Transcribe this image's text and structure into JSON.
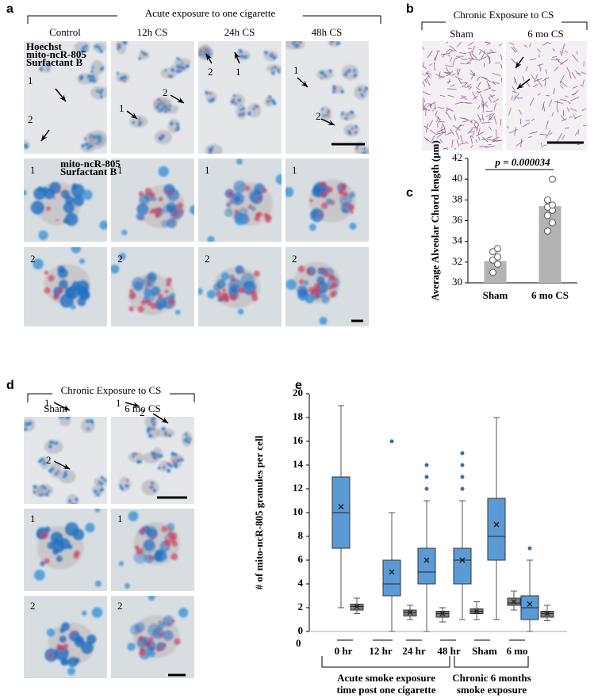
{
  "panel_a": {
    "label": "a",
    "title": "Acute exposure to one cigarette",
    "columns": [
      "Control",
      "12h CS",
      "24h CS",
      "48h CS"
    ],
    "stain_legend": [
      "Hoechst",
      "mito-ncR-805",
      "Surfactant B"
    ],
    "zoom_legend": [
      "mito-ncR-805",
      "Surfactant B"
    ],
    "cell_labels": [
      "1",
      "2"
    ]
  },
  "panel_b": {
    "label": "b",
    "title": "Chronic Exposure to CS",
    "columns": [
      "Sham",
      "6 mo CS"
    ]
  },
  "panel_d": {
    "label": "d",
    "title": "Chronic Exposure to CS",
    "columns": [
      "Sham",
      "6 mo CS"
    ],
    "cell_labels": [
      "1",
      "2"
    ]
  },
  "chart_data": [
    {
      "type": "bar",
      "label": "c",
      "ylabel": "Average Alveolar Chord length (μm)",
      "annotation": "p = 0.000034",
      "categories": [
        "Sham",
        "6 mo CS"
      ],
      "values": [
        32.1,
        37.4
      ],
      "points": [
        [
          31.0,
          31.8,
          32.2,
          32.5,
          33.0,
          33.3
        ],
        [
          35.0,
          35.8,
          36.5,
          37.0,
          37.3,
          37.5,
          38.0,
          40.0
        ]
      ],
      "color": "#b3b3b3",
      "ylim": [
        30,
        42
      ],
      "yticks": [
        30,
        32,
        34,
        36,
        38,
        40,
        42
      ]
    },
    {
      "type": "box",
      "label": "e",
      "ylabel": "# of mito-ncR-805 granules per cell",
      "x_start_label": "0",
      "categories": [
        "0 hr",
        "12 hr",
        "24 hr",
        "48 hr",
        "Sham",
        "6 mo"
      ],
      "group_labels": [
        [
          "Acute smoke exposure",
          "time post one cigarette"
        ],
        [
          "Chronic 6 months",
          "smoke exposure"
        ]
      ],
      "series": [
        {
          "color": "#5b9bd5",
          "boxes": [
            {
              "min": 2,
              "q1": 7,
              "median": 10,
              "q3": 13,
              "max": 19,
              "mean": 10.5,
              "outliers": []
            },
            {
              "min": 0,
              "q1": 3,
              "median": 4,
              "q3": 6,
              "max": 10,
              "mean": 5,
              "outliers": [
                16
              ]
            },
            {
              "min": 0,
              "q1": 4,
              "median": 5,
              "q3": 7,
              "max": 11,
              "mean": 6,
              "outliers": [
                12,
                13,
                14
              ]
            },
            {
              "min": 1,
              "q1": 4,
              "median": 6,
              "q3": 7,
              "max": 11,
              "mean": 6,
              "outliers": [
                12,
                13,
                14,
                15
              ]
            },
            {
              "min": 1,
              "q1": 6,
              "median": 8,
              "q3": 11.2,
              "max": 18,
              "mean": 9,
              "outliers": []
            },
            {
              "min": 0,
              "q1": 1,
              "median": 2,
              "q3": 3,
              "max": 6,
              "mean": 2.3,
              "outliers": [
                7
              ]
            }
          ]
        },
        {
          "color": "#808080",
          "boxes": [
            {
              "min": 1.5,
              "q1": 1.8,
              "median": 2.1,
              "q3": 2.3,
              "max": 2.8,
              "mean": 2.1,
              "outliers": []
            },
            {
              "min": 1.0,
              "q1": 1.3,
              "median": 1.6,
              "q3": 1.8,
              "max": 2.2,
              "mean": 1.6,
              "outliers": []
            },
            {
              "min": 0.8,
              "q1": 1.2,
              "median": 1.5,
              "q3": 1.7,
              "max": 2.0,
              "mean": 1.5,
              "outliers": []
            },
            {
              "min": 1.0,
              "q1": 1.5,
              "median": 1.7,
              "q3": 1.9,
              "max": 2.5,
              "mean": 1.7,
              "outliers": []
            },
            {
              "min": 1.8,
              "q1": 2.2,
              "median": 2.4,
              "q3": 2.8,
              "max": 3.4,
              "mean": 2.5,
              "outliers": []
            },
            {
              "min": 0.9,
              "q1": 1.2,
              "median": 1.5,
              "q3": 1.7,
              "max": 2.2,
              "mean": 1.5,
              "outliers": []
            }
          ]
        }
      ],
      "ylim": [
        0,
        20
      ],
      "yticks": [
        0,
        2,
        4,
        6,
        8,
        10,
        12,
        14,
        16,
        18,
        20
      ]
    }
  ]
}
